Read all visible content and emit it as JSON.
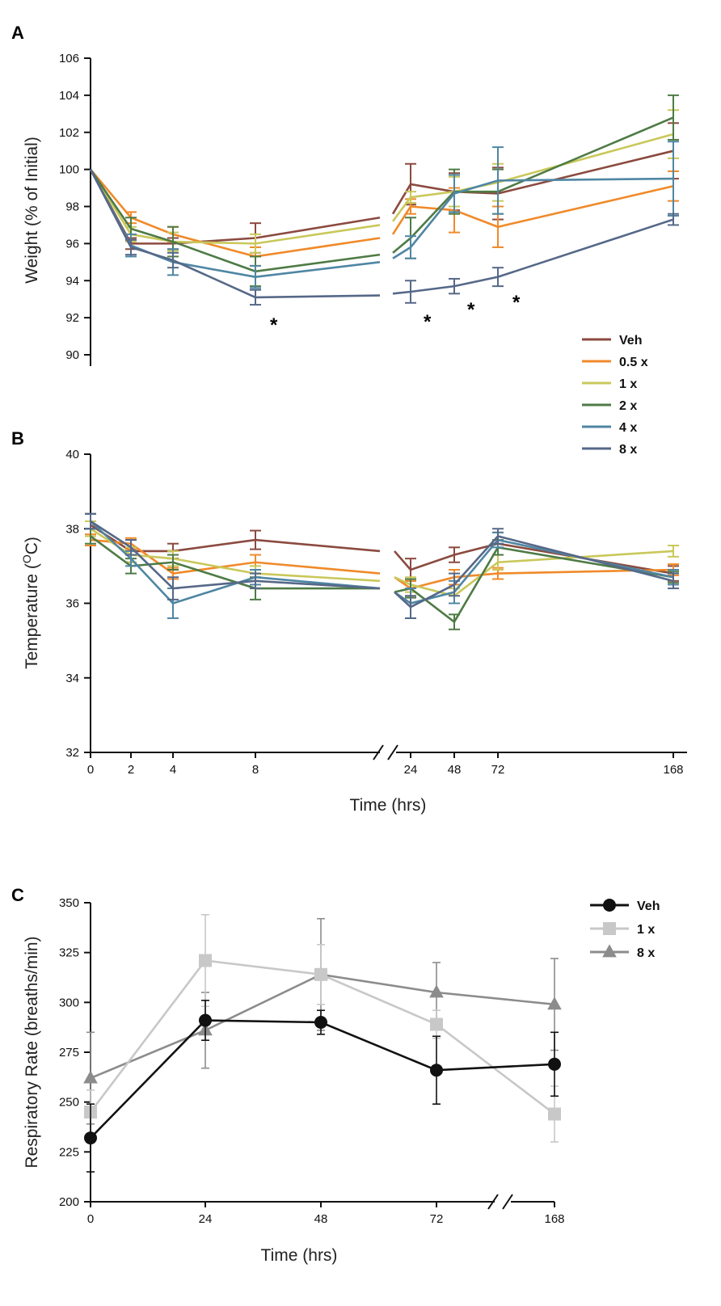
{
  "chart_data": [
    {
      "panel": "A",
      "type": "line",
      "ylabel": "Weight (% of Initial)",
      "ylim": [
        90,
        106
      ],
      "yticks": [
        "90",
        "92",
        "94",
        "96",
        "98",
        "100",
        "102",
        "104",
        "106"
      ],
      "x": [
        0,
        2,
        4,
        8,
        24,
        48,
        72,
        168
      ],
      "annotations": [
        "*",
        "*",
        "*",
        "*"
      ],
      "series": [
        {
          "name": "Veh",
          "color": "#8b4a3f",
          "values": [
            100,
            96.0,
            96.0,
            96.3,
            99.2,
            98.8,
            98.7,
            101.0
          ],
          "errors": [
            0,
            0.3,
            0.3,
            0.8,
            1.1,
            1.0,
            1.4,
            1.5
          ]
        },
        {
          "name": "0.5 x",
          "color": "#f08a2a",
          "values": [
            100,
            97.4,
            96.5,
            95.3,
            98.0,
            97.8,
            96.9,
            99.1
          ],
          "errors": [
            0,
            0.3,
            0.4,
            0.5,
            0.4,
            1.2,
            1.1,
            0.8
          ]
        },
        {
          "name": "1 x",
          "color": "#c9c85a",
          "values": [
            100,
            96.5,
            96.1,
            96.0,
            98.5,
            98.8,
            99.3,
            101.9
          ],
          "errors": [
            0,
            0.4,
            0.5,
            0.5,
            0.3,
            0.8,
            1.0,
            1.3
          ]
        },
        {
          "name": "2 x",
          "color": "#4e7b45",
          "values": [
            100,
            96.8,
            96.1,
            94.5,
            96.3,
            98.8,
            98.8,
            102.8
          ],
          "errors": [
            0,
            0.6,
            0.8,
            0.8,
            1.1,
            1.2,
            1.2,
            1.2
          ]
        },
        {
          "name": "4 x",
          "color": "#4f86a3",
          "values": [
            100,
            95.9,
            95.0,
            94.2,
            95.8,
            98.7,
            99.4,
            99.5
          ],
          "errors": [
            0,
            0.6,
            0.7,
            0.6,
            0.6,
            1.0,
            1.8,
            2.0
          ]
        },
        {
          "name": "8 x",
          "color": "#566888",
          "values": [
            100,
            95.8,
            95.1,
            93.1,
            93.4,
            93.7,
            94.2,
            97.3
          ],
          "errors": [
            0,
            0.4,
            0.4,
            0.4,
            0.6,
            0.4,
            0.5,
            0.3
          ]
        }
      ]
    },
    {
      "panel": "B",
      "type": "line",
      "xlabel": "Time (hrs)",
      "ylabel": "Temperature (OC)",
      "ylim": [
        32,
        40
      ],
      "yticks": [
        "32",
        "34",
        "36",
        "38",
        "40"
      ],
      "x": [
        0,
        2,
        4,
        8,
        24,
        48,
        72,
        168
      ],
      "xticks": [
        "0",
        "2",
        "4",
        "8",
        "24",
        "48",
        "72",
        "168"
      ],
      "series": [
        {
          "name": "Veh",
          "color": "#8b4a3f",
          "values": [
            38.1,
            37.4,
            37.4,
            37.7,
            36.9,
            37.3,
            37.6,
            36.8
          ],
          "errors": [
            0.3,
            0.3,
            0.2,
            0.25,
            0.3,
            0.2,
            0.3,
            0.2
          ]
        },
        {
          "name": "0.5 x",
          "color": "#f08a2a",
          "values": [
            37.7,
            37.6,
            36.8,
            37.1,
            36.4,
            36.7,
            36.8,
            36.9
          ],
          "errors": [
            0.15,
            0.15,
            0.15,
            0.2,
            0.2,
            0.2,
            0.15,
            0.15
          ]
        },
        {
          "name": "1 x",
          "color": "#c9c85a",
          "values": [
            38.0,
            37.3,
            37.2,
            36.8,
            36.5,
            36.2,
            37.1,
            37.4
          ],
          "errors": [
            0.2,
            0.2,
            0.2,
            0.2,
            0.2,
            0.2,
            0.2,
            0.15
          ]
        },
        {
          "name": "2 x",
          "color": "#4e7b45",
          "values": [
            37.8,
            37.0,
            37.1,
            36.4,
            36.4,
            35.5,
            37.5,
            36.7
          ],
          "errors": [
            0.2,
            0.2,
            0.2,
            0.3,
            0.25,
            0.2,
            0.2,
            0.15
          ]
        },
        {
          "name": "4 x",
          "color": "#4f86a3",
          "values": [
            38.2,
            37.2,
            36.0,
            36.7,
            36.0,
            36.3,
            37.7,
            36.7
          ],
          "errors": [
            0.2,
            0.2,
            0.4,
            0.2,
            0.4,
            0.3,
            0.2,
            0.2
          ]
        },
        {
          "name": "8 x",
          "color": "#566888",
          "values": [
            38.2,
            37.5,
            36.4,
            36.6,
            35.9,
            36.5,
            37.8,
            36.6
          ],
          "errors": [
            0.2,
            0.2,
            0.3,
            0.2,
            0.3,
            0.3,
            0.2,
            0.2
          ]
        }
      ]
    },
    {
      "panel": "C",
      "type": "line",
      "xlabel": "Time (hrs)",
      "ylabel": "Respiratory Rate (breaths/min)",
      "ylim": [
        200,
        350
      ],
      "yticks": [
        "200",
        "225",
        "250",
        "275",
        "300",
        "325",
        "350"
      ],
      "x": [
        0,
        24,
        48,
        72,
        168
      ],
      "xticks": [
        "0",
        "24",
        "48",
        "72",
        "168"
      ],
      "series": [
        {
          "name": "Veh",
          "color": "#111111",
          "marker": "circle",
          "values": [
            232,
            291,
            290,
            266,
            269
          ],
          "errors": [
            17,
            10,
            6,
            17,
            16
          ]
        },
        {
          "name": "1 x",
          "color": "#c8c8c8",
          "marker": "square",
          "values": [
            245,
            321,
            314,
            289,
            244
          ],
          "errors": [
            11,
            23,
            15,
            7,
            14
          ]
        },
        {
          "name": "8 x",
          "color": "#8c8c8c",
          "marker": "triangle",
          "values": [
            262,
            286,
            314,
            305,
            299
          ],
          "errors": [
            23,
            19,
            28,
            15,
            23
          ]
        }
      ]
    }
  ]
}
